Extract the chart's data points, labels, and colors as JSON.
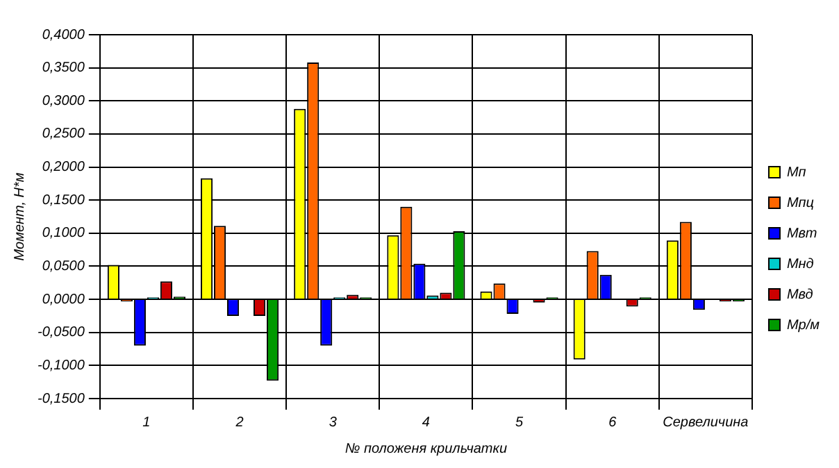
{
  "chart_data": {
    "type": "bar",
    "xlabel": "№ положеня крильчатки",
    "ylabel": "Момент, Н*м",
    "categories": [
      "1",
      "2",
      "3",
      "4",
      "5",
      "6",
      "Сервеличина"
    ],
    "series": [
      {
        "name": "Мп",
        "color": "#ffff00",
        "values": [
          0.052,
          0.183,
          0.288,
          0.097,
          0.012,
          -0.091,
          0.089
        ]
      },
      {
        "name": "Мпц",
        "color": "#ff6600",
        "values": [
          -0.003,
          0.111,
          0.358,
          0.14,
          0.024,
          0.073,
          0.117
        ]
      },
      {
        "name": "Мвт",
        "color": "#0000ff",
        "values": [
          -0.07,
          -0.025,
          -0.07,
          0.054,
          -0.022,
          0.037,
          -0.016
        ]
      },
      {
        "name": "Мнд",
        "color": "#00cccc",
        "values": [
          0.003,
          null,
          0.003,
          0.006,
          null,
          null,
          null
        ]
      },
      {
        "name": "Мвд",
        "color": "#cc0000",
        "values": [
          0.027,
          -0.025,
          0.007,
          0.01,
          -0.005,
          -0.011,
          -0.003
        ]
      },
      {
        "name": "Мр/м",
        "color": "#009900",
        "values": [
          0.004,
          -0.123,
          0.003,
          0.103,
          0.003,
          0.003,
          -0.003
        ]
      }
    ],
    "ylim": [
      -0.15,
      0.4
    ],
    "yticks": [
      {
        "value": -0.15,
        "label": "-0,1500"
      },
      {
        "value": -0.1,
        "label": "-0,1000"
      },
      {
        "value": -0.05,
        "label": "-0,0500"
      },
      {
        "value": 0,
        "label": "0,0000"
      },
      {
        "value": 0.05,
        "label": "0,0500"
      },
      {
        "value": 0.1,
        "label": "0,1000"
      },
      {
        "value": 0.15,
        "label": "0,1500"
      },
      {
        "value": 0.2,
        "label": "0,2000"
      },
      {
        "value": 0.25,
        "label": "0,2500"
      },
      {
        "value": 0.3,
        "label": "0,3000"
      },
      {
        "value": 0.35,
        "label": "0,3500"
      },
      {
        "value": 0.4,
        "label": "0,4000"
      }
    ],
    "grid": true,
    "legend": "right"
  }
}
